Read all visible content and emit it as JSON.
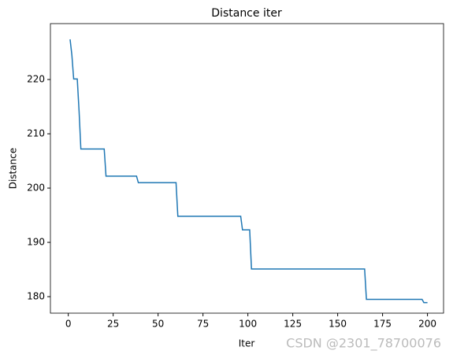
{
  "chart_data": {
    "type": "line",
    "title": "Distance iter",
    "x_label": "Iter",
    "y_label": "Distance",
    "x": [
      1,
      2,
      3,
      5,
      6,
      7,
      20,
      21,
      38,
      39,
      60,
      61,
      96,
      97,
      101,
      102,
      165,
      166,
      197,
      198,
      200
    ],
    "series": [
      {
        "name": "Distance",
        "color": "#1f77b4",
        "values": [
          227.4,
          224.5,
          220.1,
          220.1,
          214.2,
          207.2,
          207.2,
          202.2,
          202.2,
          201.0,
          201.0,
          194.8,
          194.8,
          192.3,
          192.3,
          185.1,
          185.1,
          179.5,
          179.5,
          178.9,
          178.9
        ]
      }
    ],
    "xlim": [
      -9.95,
      208.95
    ],
    "ylim": [
      176.96,
      230.3
    ],
    "xticks": [
      0,
      25,
      50,
      75,
      100,
      125,
      150,
      175,
      200
    ],
    "yticks": [
      180,
      190,
      200,
      210,
      220
    ],
    "grid": false
  },
  "watermark": "CSDN @2301_78700076"
}
